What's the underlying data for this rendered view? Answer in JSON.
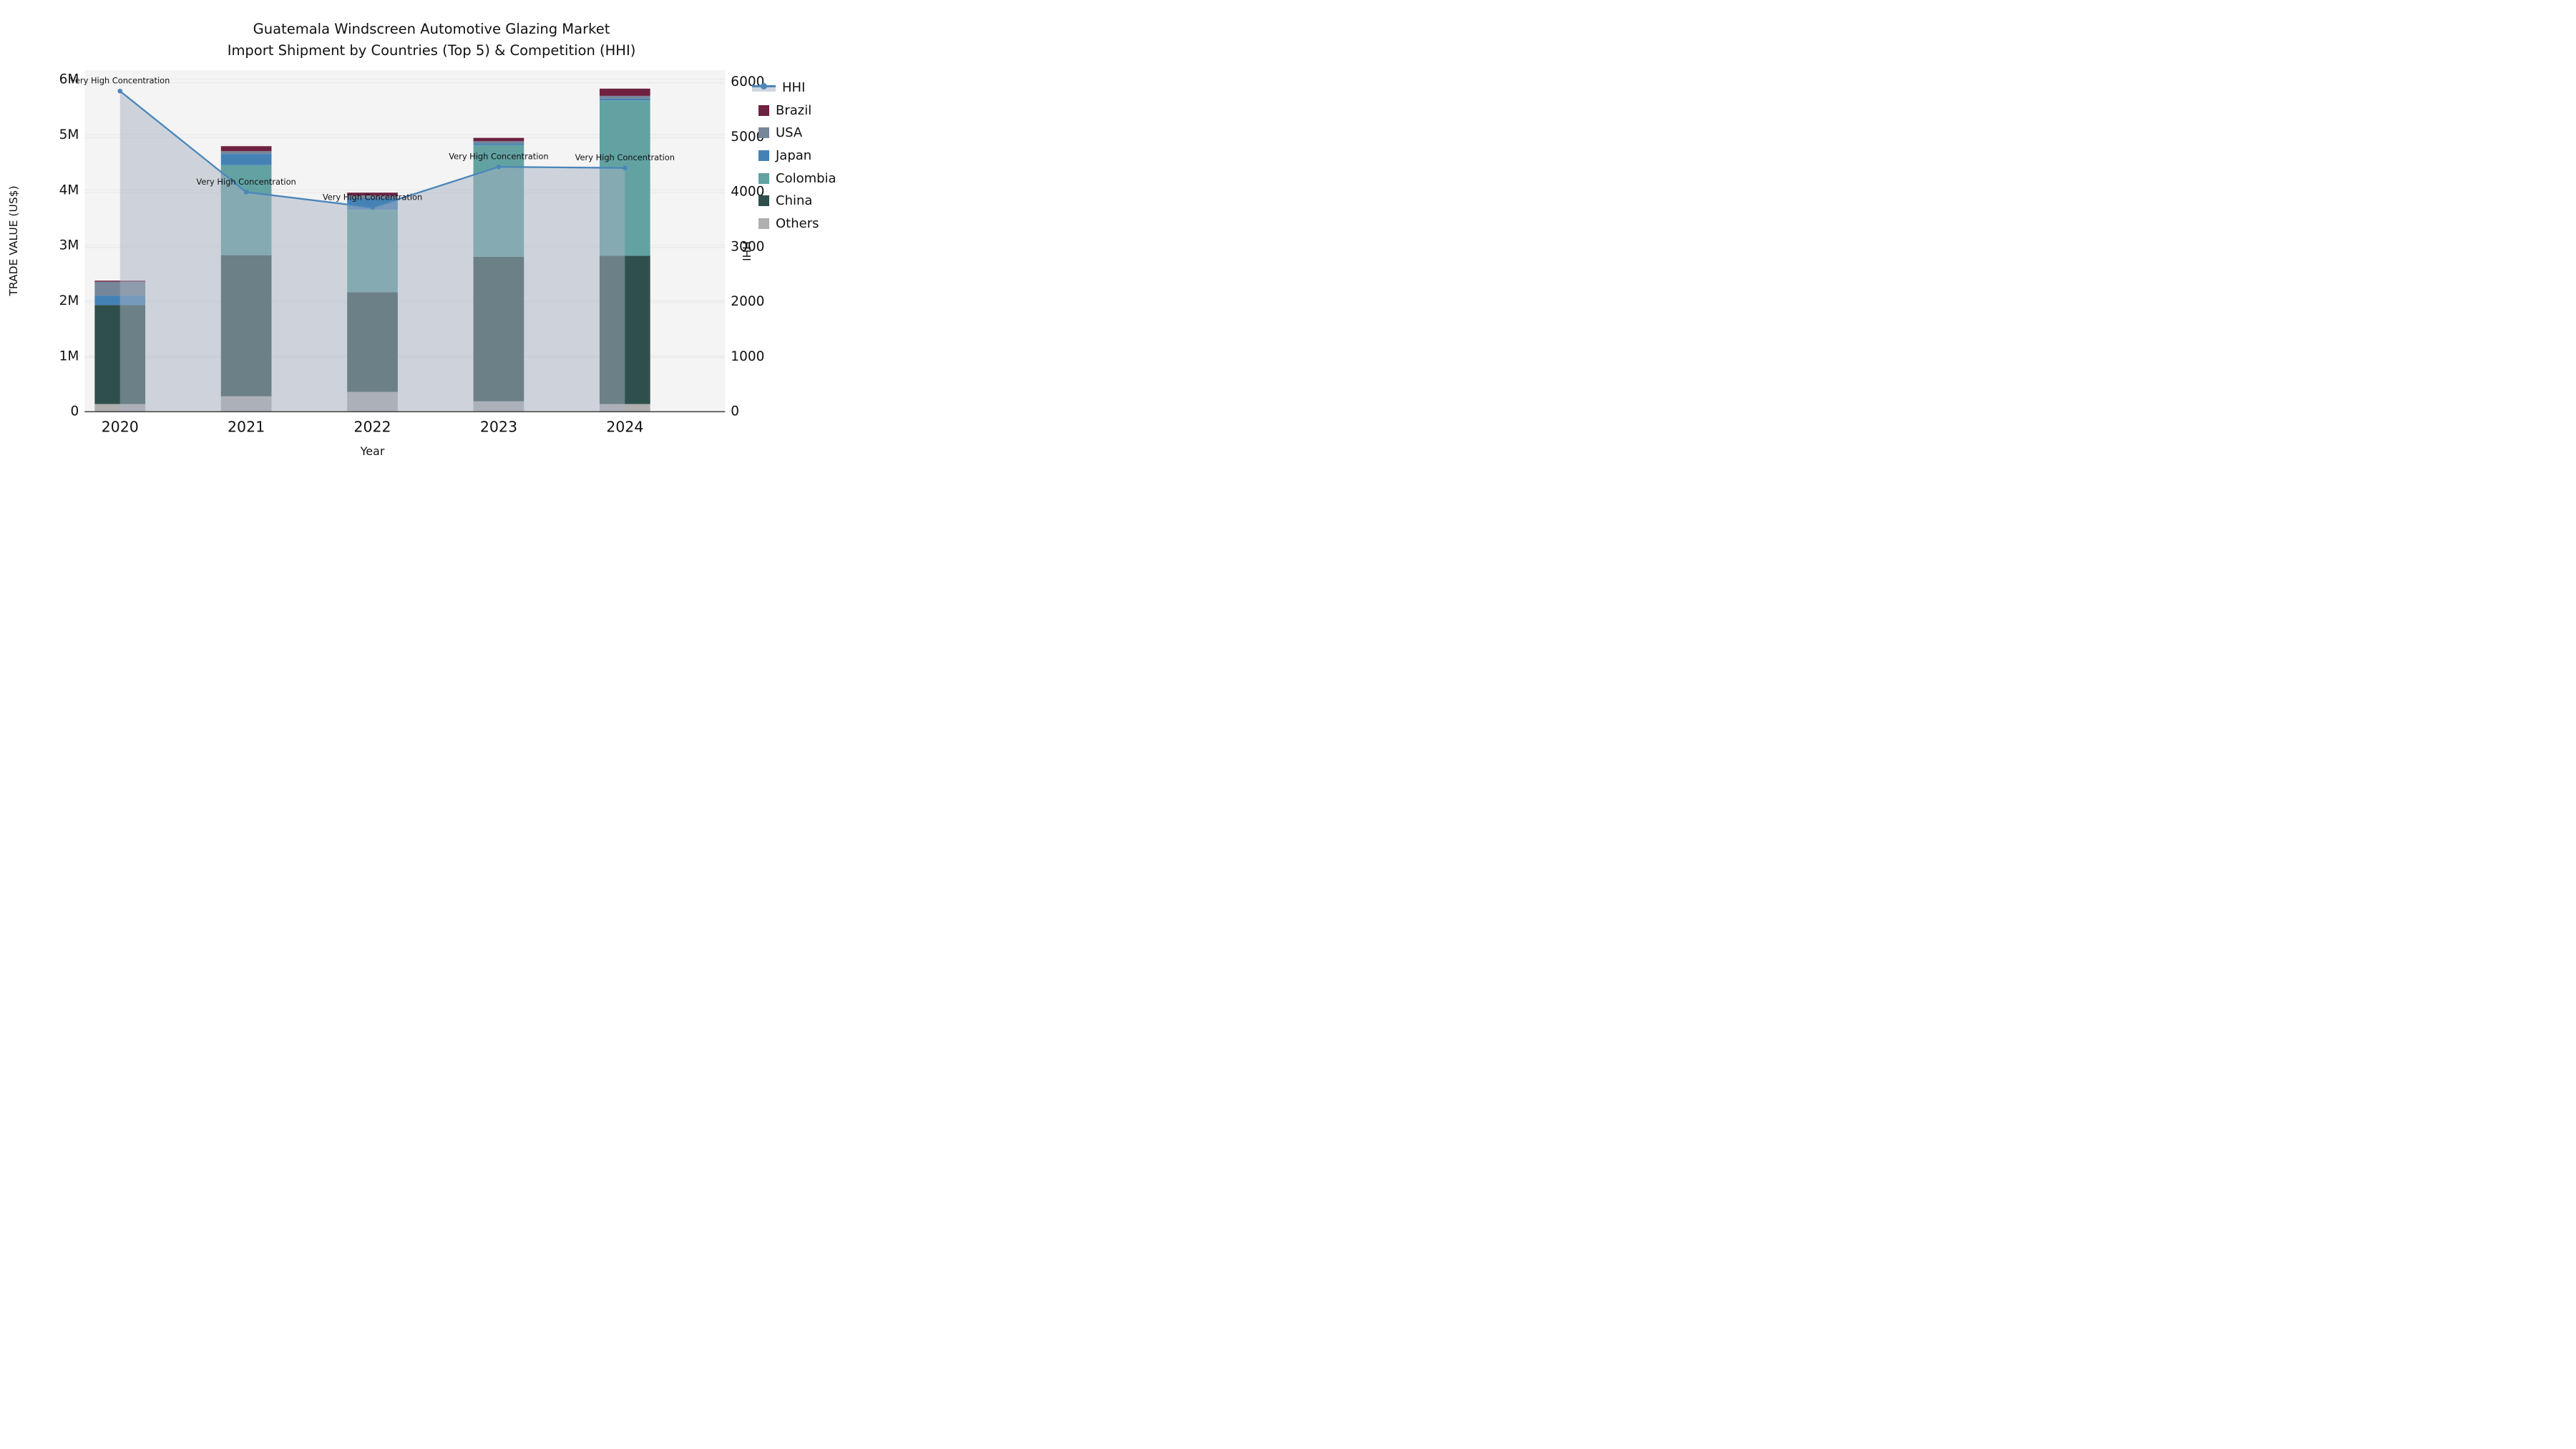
{
  "title": {
    "line1": "Guatemala Windscreen Automotive Glazing Market",
    "line2": "Import Shipment by Countries (Top 5) & Competition (HHI)"
  },
  "chart_data": {
    "type": "bar+line",
    "subtype": "stacked-bar-with-secondary-axis-line-area",
    "categories": [
      "2020",
      "2021",
      "2022",
      "2023",
      "2024"
    ],
    "xlabel": "Year",
    "ylabel_left": "TRADE VALUE (US$)",
    "ylabel_right": "HHI",
    "ylim_left_musd": [
      0,
      6
    ],
    "ylim_right": [
      0,
      6000
    ],
    "ytick_labels_left": [
      "0",
      "1M",
      "2M",
      "3M",
      "4M",
      "5M",
      "6M"
    ],
    "ytick_labels_right": [
      "0",
      "1000",
      "2000",
      "3000",
      "4000",
      "5000",
      "6000"
    ],
    "grid": true,
    "series": [
      {
        "name": "Others",
        "color": "#b0aeae",
        "values_musd": [
          0.13,
          0.27,
          0.35,
          0.18,
          0.13
        ]
      },
      {
        "name": "China",
        "color": "#2f4f4c",
        "values_musd": [
          1.79,
          2.55,
          1.8,
          2.61,
          2.68
        ]
      },
      {
        "name": "Colombia",
        "color": "#63a2a3",
        "values_musd": [
          0.0,
          1.63,
          1.49,
          2.02,
          2.81
        ]
      },
      {
        "name": "Japan",
        "color": "#4482b6",
        "values_musd": [
          0.17,
          0.2,
          0.21,
          0.03,
          0.03
        ]
      },
      {
        "name": "USA",
        "color": "#76869a",
        "values_musd": [
          0.25,
          0.05,
          0.05,
          0.04,
          0.05
        ]
      },
      {
        "name": "Brazil",
        "color": "#6e2141",
        "values_musd": [
          0.02,
          0.09,
          0.05,
          0.06,
          0.13
        ]
      }
    ],
    "bar_totals_musd": [
      2.36,
      4.79,
      3.95,
      4.94,
      5.83
    ],
    "hhi_line": {
      "name": "HHI",
      "color": "#4a86ba",
      "area_fill_color": "#a8b2c2",
      "area_fill_opacity": 0.5,
      "values": [
        5830,
        3990,
        3710,
        4450,
        4430
      ]
    },
    "annotations": [
      {
        "category": "2020",
        "text": "Very High Concentration"
      },
      {
        "category": "2021",
        "text": "Very High Concentration"
      },
      {
        "category": "2022",
        "text": "Very High Concentration"
      },
      {
        "category": "2023",
        "text": "Very High Concentration"
      },
      {
        "category": "2024",
        "text": "Very High Concentration"
      }
    ],
    "legend": {
      "position": "right",
      "items": [
        "HHI",
        "Brazil",
        "USA",
        "Japan",
        "Colombia",
        "China",
        "Others"
      ]
    },
    "colors": {
      "plot_background": "#f4f4f4",
      "figure_background": "#ffffff",
      "gridline": "#e8e8e8",
      "axis_line": "#3d3d3d",
      "text": "#111111"
    }
  }
}
